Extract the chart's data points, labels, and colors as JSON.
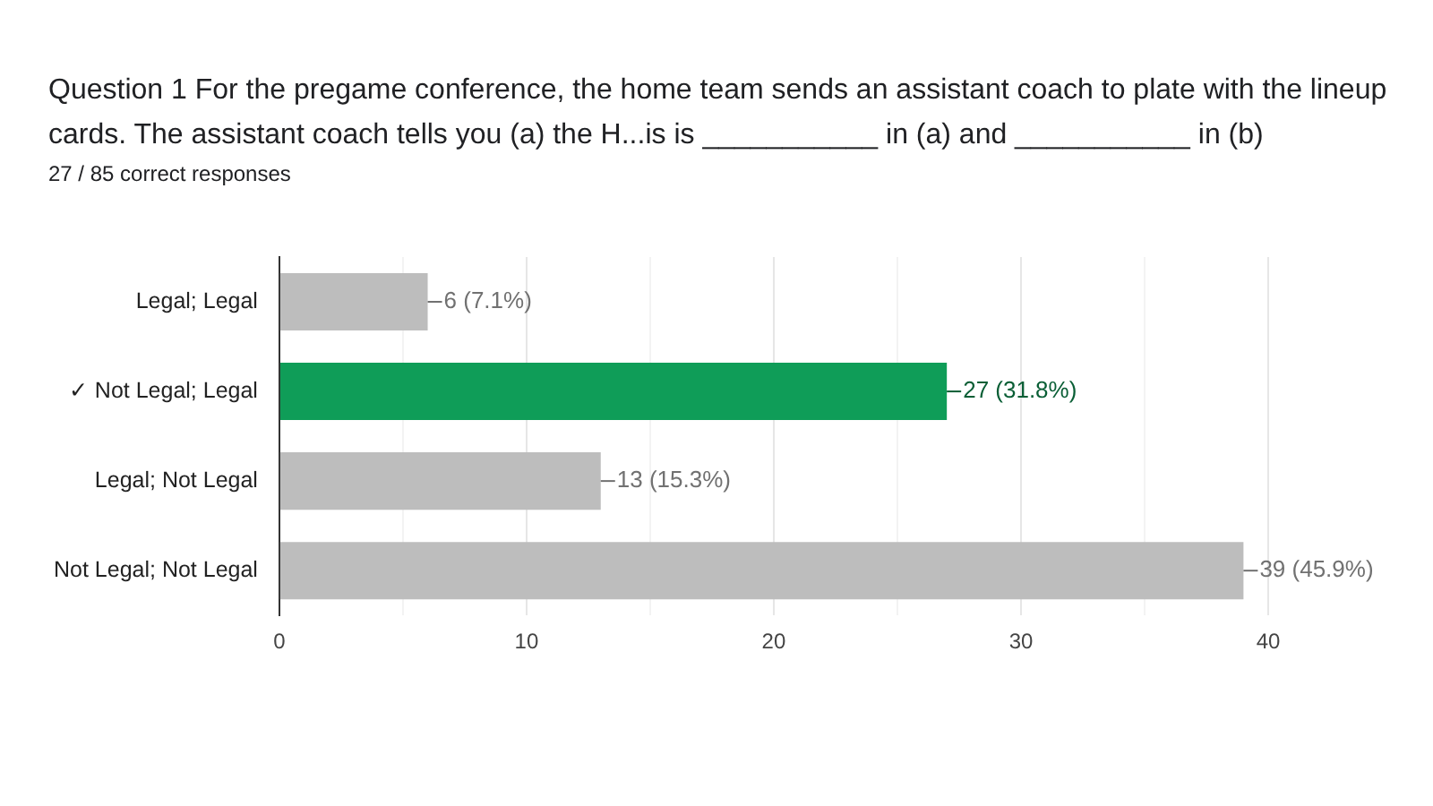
{
  "chart_data": {
    "type": "bar",
    "orientation": "horizontal",
    "title": "Question 1  For the pregame conference, the home team sends an assistant coach to plate with the lineup cards.  The assistant coach tells you (a) the H...is is ___________ in (a) and ___________ in (b)",
    "subtitle": "27 / 85 correct responses",
    "categories": [
      "Legal; Legal",
      "✓ Not Legal; Legal",
      "Legal; Not Legal",
      "Not Legal; Not Legal"
    ],
    "values": [
      6,
      27,
      13,
      39
    ],
    "colors": [
      "#bdbdbd",
      "#0f9d58",
      "#bdbdbd",
      "#bdbdbd"
    ],
    "value_labels": [
      "6 (7.1%)",
      "27 (31.8%)",
      "13 (15.3%)",
      "39 (45.9%)"
    ],
    "xlim": [
      0,
      40
    ],
    "xticks": [
      0,
      {
        "value": 5,
        "label": null
      },
      10,
      {
        "value": 15,
        "label": null
      },
      20,
      {
        "value": 25,
        "label": null
      },
      30,
      {
        "value": 35,
        "label": null
      },
      40
    ],
    "grid": "x",
    "legend": false
  }
}
